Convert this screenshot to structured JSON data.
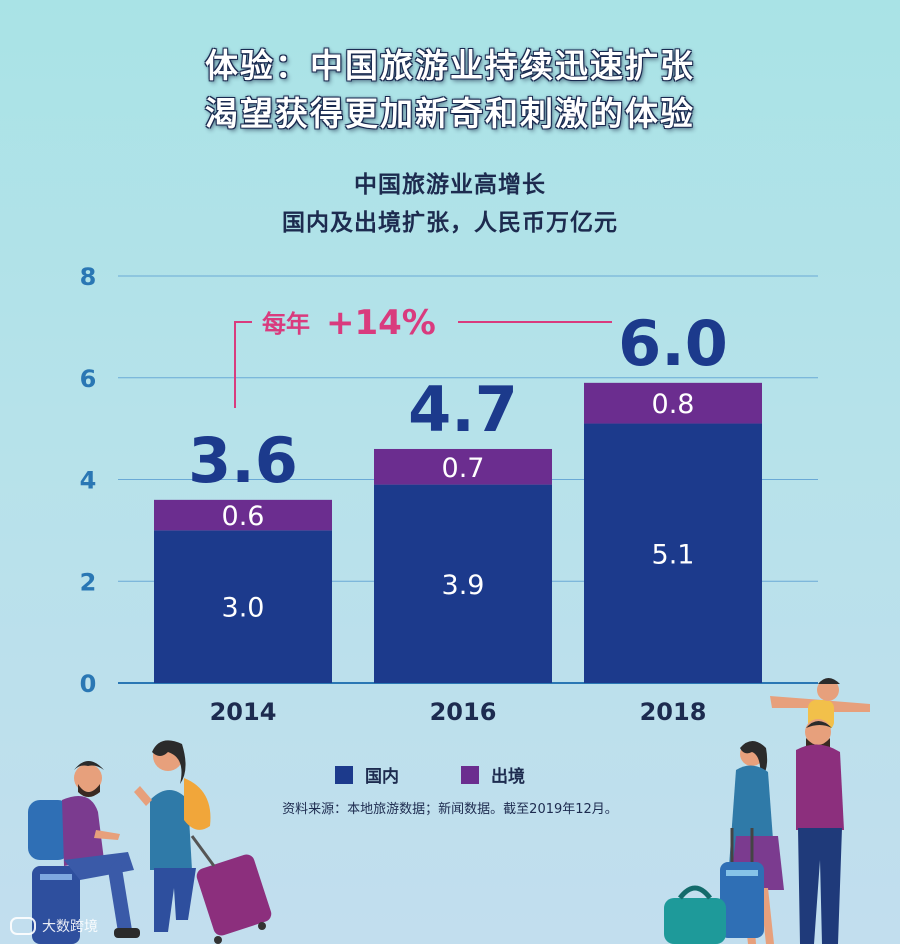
{
  "headline": {
    "line1": "体验：中国旅游业持续迅速扩张",
    "line2": "渴望获得更加新奇和刺激的体验"
  },
  "subtitle": {
    "line1": "中国旅游业高增长",
    "line2": "国内及出境扩张，人民币万亿元"
  },
  "legend": {
    "domestic": "国内",
    "outbound": "出境"
  },
  "source": "资料来源：本地旅游数据；新闻数据。截至2019年12月。",
  "watermark": "大数跨境",
  "colors": {
    "domestic": "#1c3a8c",
    "outbound": "#6b2d8f",
    "accent": "#d93b7e",
    "axis": "#2a77b4",
    "text": "#1d2b4f"
  },
  "chart_data": {
    "type": "bar",
    "stacked": true,
    "title": "中国旅游业高增长",
    "subtitle": "国内及出境扩张，人民币万亿元",
    "categories": [
      "2014",
      "2016",
      "2018"
    ],
    "series": [
      {
        "name": "国内",
        "values": [
          3.0,
          3.9,
          5.1
        ]
      },
      {
        "name": "出境",
        "values": [
          0.6,
          0.7,
          0.8
        ]
      }
    ],
    "value_labels": {
      "domestic": [
        "3.0",
        "3.9",
        "5.1"
      ],
      "outbound": [
        "0.6",
        "0.7",
        "0.8"
      ]
    },
    "totals": [
      "3.6",
      "4.7",
      "6.0"
    ],
    "yticks": [
      "0",
      "2",
      "4",
      "6",
      "8"
    ],
    "ylim": [
      0,
      8
    ],
    "grid": true,
    "annotation": {
      "prefix": "每年",
      "value": "+14%"
    }
  }
}
